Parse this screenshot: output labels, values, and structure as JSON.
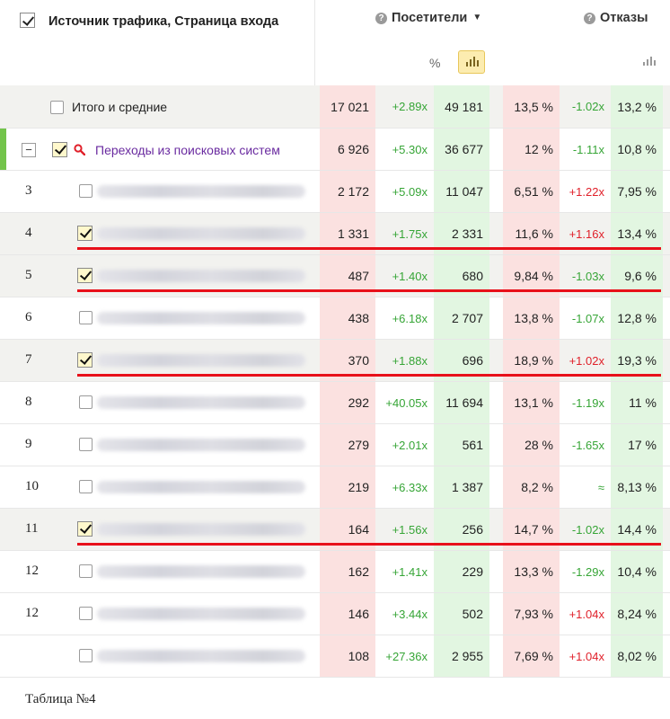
{
  "header": {
    "title": "Источник трафика, Страница входа",
    "visitors_label": "Посетители",
    "bounces_label": "Отказы",
    "help_glyph": "?",
    "sort_caret": "▼",
    "percent_toggle": "%"
  },
  "total": {
    "label": "Итого и средние",
    "cells": [
      "17 021",
      "+2.89x",
      "49 181",
      "13,5 %",
      "-1.02x",
      "13,2 %"
    ]
  },
  "group": {
    "label": "Переходы из поисковых систем",
    "expand_glyph": "−",
    "cells": [
      "6 926",
      "+5.30x",
      "36 677",
      "12 %",
      "-1.11x",
      "10,8 %"
    ]
  },
  "rows": [
    {
      "num": "3",
      "checked": false,
      "cells": [
        "2 172",
        "+5.09x",
        "11 047",
        "6,51 %",
        "+1.22x",
        "7,95 %"
      ]
    },
    {
      "num": "4",
      "checked": true,
      "cells": [
        "1 331",
        "+1.75x",
        "2 331",
        "11,6 %",
        "+1.16x",
        "13,4 %"
      ]
    },
    {
      "num": "5",
      "checked": true,
      "cells": [
        "487",
        "+1.40x",
        "680",
        "9,84 %",
        "-1.03x",
        "9,6 %"
      ]
    },
    {
      "num": "6",
      "checked": false,
      "cells": [
        "438",
        "+6.18x",
        "2 707",
        "13,8 %",
        "-1.07x",
        "12,8 %"
      ]
    },
    {
      "num": "7",
      "checked": true,
      "cells": [
        "370",
        "+1.88x",
        "696",
        "18,9 %",
        "+1.02x",
        "19,3 %"
      ]
    },
    {
      "num": "8",
      "checked": false,
      "cells": [
        "292",
        "+40.05x",
        "11 694",
        "13,1 %",
        "-1.19x",
        "11 %"
      ]
    },
    {
      "num": "9",
      "checked": false,
      "cells": [
        "279",
        "+2.01x",
        "561",
        "28 %",
        "-1.65x",
        "17 %"
      ]
    },
    {
      "num": "10",
      "checked": false,
      "cells": [
        "219",
        "+6.33x",
        "1 387",
        "8,2 %",
        "≈",
        "8,13 %"
      ]
    },
    {
      "num": "11",
      "checked": true,
      "cells": [
        "164",
        "+1.56x",
        "256",
        "14,7 %",
        "-1.02x",
        "14,4 %"
      ]
    },
    {
      "num": "12",
      "checked": false,
      "cells": [
        "162",
        "+1.41x",
        "229",
        "13,3 %",
        "-1.29x",
        "10,4 %"
      ]
    },
    {
      "num": "12",
      "checked": false,
      "cells": [
        "146",
        "+3.44x",
        "502",
        "7,93 %",
        "+1.04x",
        "8,24 %"
      ]
    },
    {
      "num": "",
      "checked": false,
      "cells": [
        "108",
        "+27.36x",
        "2 955",
        "7,69 %",
        "+1.04x",
        "8,02 %"
      ]
    }
  ],
  "caption": "Таблица №4",
  "colors": {
    "pos_delta": "#36a536",
    "neg_delta": "#e0202a",
    "visitors_bg": "#fbe1e0",
    "bounce_bg": "#e2f6e1",
    "group_label": "#6a2ba0",
    "highlight_line": "#e8101a"
  }
}
